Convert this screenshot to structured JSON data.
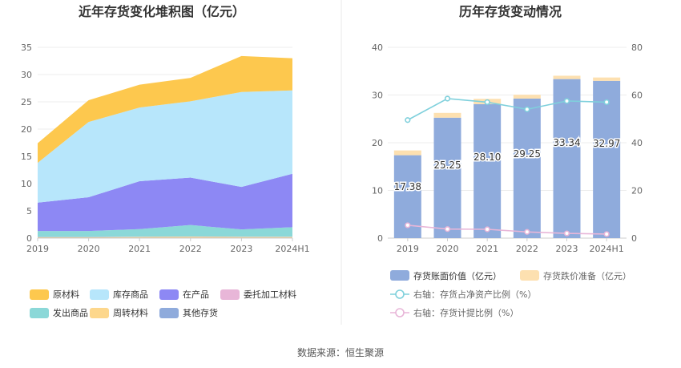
{
  "source_label": "数据来源：恒生聚源",
  "chart_data": [
    {
      "type": "area",
      "stacked": true,
      "title": "近年存货变化堆积图（亿元）",
      "categories": [
        "2019",
        "2020",
        "2021",
        "2022",
        "2023",
        "2024H1"
      ],
      "ylim": [
        0,
        35
      ],
      "yticks": [
        0,
        5,
        10,
        15,
        20,
        25,
        30,
        35
      ],
      "grid": true,
      "legend_position": "bottom",
      "series": [
        {
          "name": "其他存货",
          "color": "#8fabdc",
          "values": [
            0.05,
            0.05,
            0.05,
            0.05,
            0.05,
            0.05
          ]
        },
        {
          "name": "周转材料",
          "color": "#fdd78c",
          "values": [
            0.1,
            0.1,
            0.15,
            0.2,
            0.15,
            0.15
          ]
        },
        {
          "name": "委托加工材料",
          "color": "#e8b6d8",
          "values": [
            0.05,
            0.05,
            0.05,
            0.05,
            0.05,
            0.05
          ]
        },
        {
          "name": "发出商品",
          "color": "#8bd8d8",
          "values": [
            1.1,
            1.1,
            1.4,
            2.1,
            1.35,
            1.75
          ]
        },
        {
          "name": "在产品",
          "color": "#8d88f4",
          "values": [
            5.2,
            6.2,
            8.8,
            8.7,
            7.8,
            9.8
          ]
        },
        {
          "name": "库存商品",
          "color": "#b7e6fb",
          "values": [
            7.3,
            13.8,
            13.5,
            14.0,
            17.4,
            15.3
          ]
        },
        {
          "name": "原材料",
          "color": "#fdc84e",
          "values": [
            3.6,
            4.0,
            4.2,
            4.3,
            6.6,
            5.9
          ]
        }
      ],
      "legend_order": [
        "原材料",
        "库存商品",
        "在产品",
        "委托加工材料",
        "发出商品",
        "周转材料",
        "其他存货"
      ]
    },
    {
      "type": "bar+line",
      "title": "历年存货变动情况",
      "categories": [
        "2019",
        "2020",
        "2021",
        "2022",
        "2023",
        "2024H1"
      ],
      "ylim_left": [
        0,
        40
      ],
      "yticks_left": [
        0,
        10,
        20,
        30,
        40
      ],
      "ylim_right": [
        0,
        80
      ],
      "yticks_right": [
        0,
        20,
        40,
        60,
        80
      ],
      "grid": true,
      "legend_position": "bottom",
      "bars": [
        {
          "name": "存货账面价值（亿元）",
          "color": "#8fabdc",
          "values": [
            17.38,
            25.25,
            28.1,
            29.25,
            33.34,
            32.97
          ],
          "labels": [
            "17.38",
            "25.25",
            "28.10",
            "29.25",
            "33.34",
            "32.97"
          ]
        },
        {
          "name": "存货跌价准备（亿元）",
          "color": "#fde0b0",
          "values": [
            1.0,
            1.0,
            1.1,
            0.8,
            0.7,
            0.7
          ]
        }
      ],
      "lines": [
        {
          "name": "右轴：存货占净资产比例（%）",
          "color": "#7fd0dc",
          "axis": "right",
          "values": [
            49.5,
            58.5,
            57.0,
            54.0,
            57.5,
            57.0
          ]
        },
        {
          "name": "右轴：存货计提比例（%）",
          "color": "#e8b6d8",
          "axis": "right",
          "values": [
            5.4,
            3.8,
            3.7,
            2.6,
            2.0,
            1.7
          ]
        }
      ]
    }
  ]
}
